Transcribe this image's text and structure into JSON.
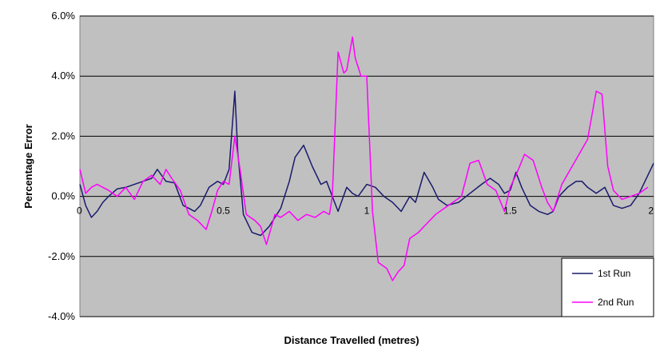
{
  "chart_data": {
    "type": "line",
    "title": "",
    "xlabel": "Distance Travelled (metres)",
    "ylabel": "Percentage Error",
    "xlim": [
      0,
      2
    ],
    "ylim": [
      -4.0,
      6.0
    ],
    "x_ticks": [
      0,
      0.5,
      1,
      1.5,
      2
    ],
    "x_tick_labels": [
      "0",
      "0.5",
      "1",
      "1.5",
      "2"
    ],
    "y_ticks": [
      -4.0,
      -2.0,
      0.0,
      2.0,
      4.0,
      6.0
    ],
    "y_tick_labels": [
      "-4.0%",
      "-2.0%",
      "0.0%",
      "2.0%",
      "4.0%",
      "6.0%"
    ],
    "grid": "horizontal",
    "legend_position": "bottom-right",
    "plot_background": "#c0c0c0",
    "series": [
      {
        "name": "1st Run",
        "color": "#1a1a6e",
        "points": [
          [
            0.0,
            0.4
          ],
          [
            0.02,
            -0.3
          ],
          [
            0.04,
            -0.7
          ],
          [
            0.06,
            -0.5
          ],
          [
            0.08,
            -0.2
          ],
          [
            0.1,
            0.0
          ],
          [
            0.13,
            0.25
          ],
          [
            0.16,
            0.3
          ],
          [
            0.19,
            0.4
          ],
          [
            0.22,
            0.5
          ],
          [
            0.25,
            0.6
          ],
          [
            0.27,
            0.9
          ],
          [
            0.3,
            0.5
          ],
          [
            0.33,
            0.45
          ],
          [
            0.36,
            -0.3
          ],
          [
            0.38,
            -0.4
          ],
          [
            0.4,
            -0.5
          ],
          [
            0.42,
            -0.3
          ],
          [
            0.45,
            0.3
          ],
          [
            0.48,
            0.5
          ],
          [
            0.5,
            0.4
          ],
          [
            0.52,
            0.9
          ],
          [
            0.54,
            3.5
          ],
          [
            0.55,
            1.5
          ],
          [
            0.57,
            -0.6
          ],
          [
            0.6,
            -1.2
          ],
          [
            0.63,
            -1.3
          ],
          [
            0.66,
            -1.0
          ],
          [
            0.7,
            -0.4
          ],
          [
            0.73,
            0.5
          ],
          [
            0.75,
            1.3
          ],
          [
            0.78,
            1.7
          ],
          [
            0.81,
            1.0
          ],
          [
            0.84,
            0.4
          ],
          [
            0.86,
            0.5
          ],
          [
            0.88,
            0.0
          ],
          [
            0.9,
            -0.5
          ],
          [
            0.93,
            0.3
          ],
          [
            0.95,
            0.1
          ],
          [
            0.97,
            0.0
          ],
          [
            1.0,
            0.4
          ],
          [
            1.03,
            0.3
          ],
          [
            1.06,
            0.0
          ],
          [
            1.09,
            -0.2
          ],
          [
            1.12,
            -0.5
          ],
          [
            1.15,
            0.0
          ],
          [
            1.17,
            -0.2
          ],
          [
            1.2,
            0.8
          ],
          [
            1.23,
            0.3
          ],
          [
            1.25,
            -0.1
          ],
          [
            1.28,
            -0.3
          ],
          [
            1.32,
            -0.2
          ],
          [
            1.36,
            0.1
          ],
          [
            1.4,
            0.4
          ],
          [
            1.43,
            0.6
          ],
          [
            1.46,
            0.4
          ],
          [
            1.48,
            0.1
          ],
          [
            1.5,
            0.2
          ],
          [
            1.52,
            0.8
          ],
          [
            1.54,
            0.3
          ],
          [
            1.57,
            -0.3
          ],
          [
            1.6,
            -0.5
          ],
          [
            1.63,
            -0.6
          ],
          [
            1.65,
            -0.5
          ],
          [
            1.67,
            0.0
          ],
          [
            1.7,
            0.3
          ],
          [
            1.73,
            0.5
          ],
          [
            1.75,
            0.5
          ],
          [
            1.77,
            0.3
          ],
          [
            1.8,
            0.1
          ],
          [
            1.83,
            0.3
          ],
          [
            1.86,
            -0.3
          ],
          [
            1.89,
            -0.4
          ],
          [
            1.92,
            -0.3
          ],
          [
            1.95,
            0.1
          ],
          [
            1.97,
            0.5
          ],
          [
            2.0,
            1.1
          ]
        ]
      },
      {
        "name": "2nd Run",
        "color": "#ff00ff",
        "points": [
          [
            0.0,
            0.9
          ],
          [
            0.02,
            0.1
          ],
          [
            0.04,
            0.3
          ],
          [
            0.06,
            0.4
          ],
          [
            0.08,
            0.3
          ],
          [
            0.1,
            0.2
          ],
          [
            0.13,
            0.0
          ],
          [
            0.16,
            0.3
          ],
          [
            0.19,
            -0.1
          ],
          [
            0.22,
            0.5
          ],
          [
            0.25,
            0.7
          ],
          [
            0.28,
            0.4
          ],
          [
            0.3,
            0.9
          ],
          [
            0.32,
            0.6
          ],
          [
            0.35,
            0.2
          ],
          [
            0.38,
            -0.6
          ],
          [
            0.41,
            -0.8
          ],
          [
            0.44,
            -1.1
          ],
          [
            0.46,
            -0.5
          ],
          [
            0.48,
            0.2
          ],
          [
            0.5,
            0.5
          ],
          [
            0.52,
            0.4
          ],
          [
            0.54,
            2.0
          ],
          [
            0.56,
            0.8
          ],
          [
            0.58,
            -0.6
          ],
          [
            0.61,
            -0.8
          ],
          [
            0.63,
            -1.0
          ],
          [
            0.65,
            -1.6
          ],
          [
            0.68,
            -0.6
          ],
          [
            0.7,
            -0.7
          ],
          [
            0.73,
            -0.5
          ],
          [
            0.76,
            -0.8
          ],
          [
            0.79,
            -0.6
          ],
          [
            0.82,
            -0.7
          ],
          [
            0.85,
            -0.5
          ],
          [
            0.87,
            -0.6
          ],
          [
            0.88,
            0.0
          ],
          [
            0.9,
            4.8
          ],
          [
            0.92,
            4.1
          ],
          [
            0.93,
            4.2
          ],
          [
            0.95,
            5.3
          ],
          [
            0.96,
            4.6
          ],
          [
            0.98,
            4.0
          ],
          [
            1.0,
            4.0
          ],
          [
            1.02,
            -0.5
          ],
          [
            1.04,
            -2.2
          ],
          [
            1.07,
            -2.4
          ],
          [
            1.09,
            -2.8
          ],
          [
            1.11,
            -2.5
          ],
          [
            1.13,
            -2.3
          ],
          [
            1.15,
            -1.4
          ],
          [
            1.18,
            -1.2
          ],
          [
            1.21,
            -0.9
          ],
          [
            1.24,
            -0.6
          ],
          [
            1.27,
            -0.4
          ],
          [
            1.3,
            -0.2
          ],
          [
            1.33,
            0.0
          ],
          [
            1.36,
            1.1
          ],
          [
            1.39,
            1.2
          ],
          [
            1.42,
            0.4
          ],
          [
            1.45,
            0.2
          ],
          [
            1.48,
            -0.5
          ],
          [
            1.5,
            0.3
          ],
          [
            1.52,
            0.7
          ],
          [
            1.55,
            1.4
          ],
          [
            1.58,
            1.2
          ],
          [
            1.61,
            0.3
          ],
          [
            1.63,
            -0.2
          ],
          [
            1.65,
            -0.5
          ],
          [
            1.68,
            0.4
          ],
          [
            1.71,
            0.9
          ],
          [
            1.74,
            1.4
          ],
          [
            1.77,
            1.9
          ],
          [
            1.8,
            3.5
          ],
          [
            1.82,
            3.4
          ],
          [
            1.84,
            1.0
          ],
          [
            1.86,
            0.2
          ],
          [
            1.89,
            -0.1
          ],
          [
            1.92,
            0.0
          ],
          [
            1.95,
            0.1
          ],
          [
            1.98,
            0.3
          ]
        ]
      }
    ]
  }
}
